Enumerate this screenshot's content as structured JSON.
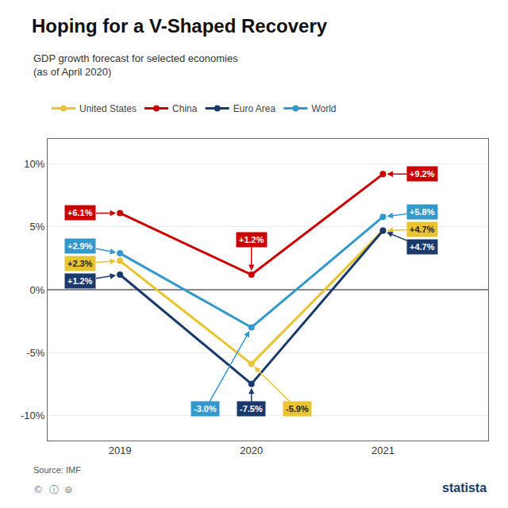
{
  "chart_data": {
    "type": "line",
    "title": "Hoping for a V-Shaped Recovery",
    "subtitle": "GDP growth forecast for selected economies\n(as of April 2020)",
    "annotations": [
      "Source: IMF",
      "©  ⓘ  ⊜",
      "statista"
    ],
    "x": [
      2019,
      2020,
      2021
    ],
    "series": [
      {
        "name": "United States",
        "color": "#E8C432",
        "values": [
          2.3,
          -5.9,
          4.7
        ],
        "value_labels": [
          "+2.3%",
          "-5.9%",
          "+4.7%"
        ]
      },
      {
        "name": "China",
        "color": "#CC0000",
        "values": [
          6.1,
          1.2,
          9.2
        ],
        "value_labels": [
          "+6.1%",
          "+1.2%",
          "+9.2%"
        ]
      },
      {
        "name": "Euro Area",
        "color": "#1A3A6B",
        "values": [
          1.2,
          -7.5,
          4.7
        ],
        "value_labels": [
          "+1.2%",
          "-7.5%",
          "+4.7%"
        ]
      },
      {
        "name": "World",
        "color": "#3399CC",
        "values": [
          2.9,
          -3.0,
          5.8
        ],
        "value_labels": [
          "+2.9%",
          "-3.0%",
          "+5.8%"
        ]
      }
    ],
    "xlim": [
      2018.45,
      2021.8
    ],
    "xticks": [
      2019,
      2020,
      2021
    ],
    "ylim": [
      -12,
      12
    ],
    "yticks": [
      {
        "value": -10,
        "label": "-10%"
      },
      {
        "value": -5,
        "label": "-5%"
      },
      {
        "value": 0,
        "label": "0%"
      },
      {
        "value": 5,
        "label": "5%"
      },
      {
        "value": 10,
        "label": "10%"
      }
    ],
    "grid": true,
    "legend": "top",
    "marker": "circle",
    "line_style": "solid",
    "data_labels": true
  }
}
